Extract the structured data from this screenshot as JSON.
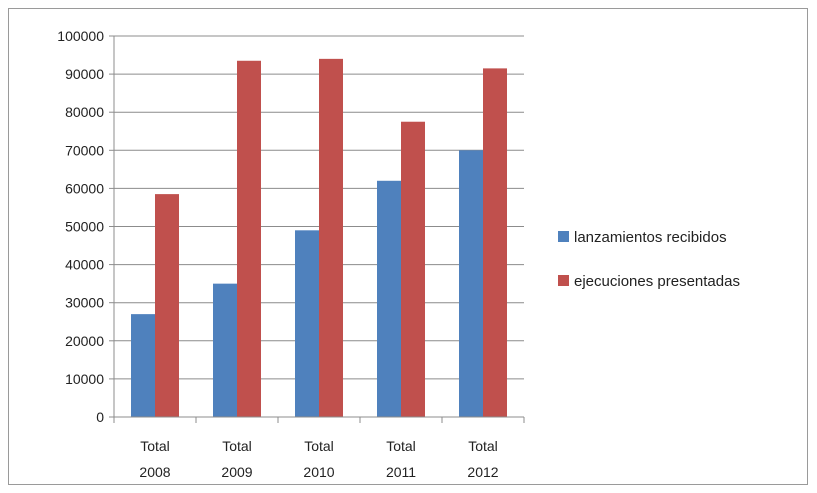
{
  "chart_data": {
    "type": "bar",
    "categories": [
      "Total 2008",
      "Total 2009",
      "Total 2010",
      "Total 2011",
      "Total 2012"
    ],
    "category_lines": [
      [
        "Total",
        "2008"
      ],
      [
        "Total",
        "2009"
      ],
      [
        "Total",
        "2010"
      ],
      [
        "Total",
        "2011"
      ],
      [
        "Total",
        "2012"
      ]
    ],
    "series": [
      {
        "name": "lanzamientos recibidos",
        "color": "#4f81bd",
        "values": [
          27000,
          35000,
          49000,
          62000,
          70000
        ]
      },
      {
        "name": "ejecuciones presentadas",
        "color": "#c0504d",
        "values": [
          58500,
          93500,
          94000,
          77500,
          91500
        ]
      }
    ],
    "title": "",
    "xlabel": "",
    "ylabel": "",
    "ylim": [
      0,
      100000
    ],
    "yticks": [
      0,
      10000,
      20000,
      30000,
      40000,
      50000,
      60000,
      70000,
      80000,
      90000,
      100000
    ],
    "grid": true,
    "legend": "right"
  }
}
